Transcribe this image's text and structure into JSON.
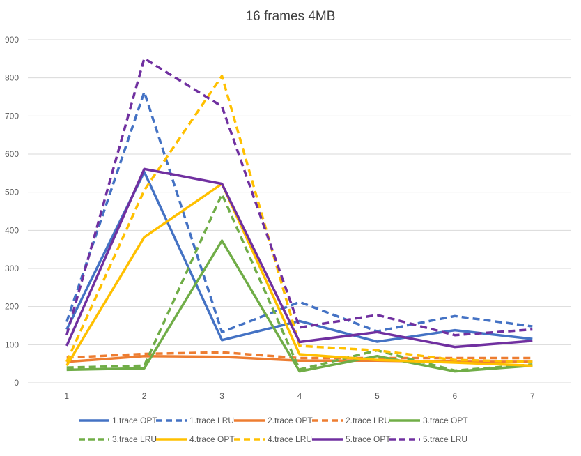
{
  "chart_data": {
    "type": "line",
    "title": "16 frames 4MB",
    "xlabel": "",
    "ylabel": "",
    "x": [
      "1",
      "2",
      "3",
      "4",
      "5",
      "6",
      "7"
    ],
    "ylim": [
      0,
      900
    ],
    "yticks": [
      0,
      100,
      200,
      300,
      400,
      500,
      600,
      700,
      800,
      900
    ],
    "grid": true,
    "legend_position": "bottom",
    "series": [
      {
        "name": "1.trace OPT",
        "color": "#4472C4",
        "dash": false,
        "values": [
          140,
          553,
          112,
          162,
          108,
          138,
          115
        ]
      },
      {
        "name": "1.trace LRU",
        "color": "#4472C4",
        "dash": true,
        "values": [
          160,
          763,
          133,
          212,
          135,
          175,
          148
        ]
      },
      {
        "name": "2.trace OPT",
        "color": "#ED7D31",
        "dash": false,
        "values": [
          55,
          70,
          68,
          58,
          58,
          55,
          55
        ]
      },
      {
        "name": "2.trace LRU",
        "color": "#ED7D31",
        "dash": true,
        "values": [
          66,
          76,
          80,
          65,
          65,
          65,
          65
        ]
      },
      {
        "name": "3.trace OPT",
        "color": "#70AD47",
        "dash": false,
        "values": [
          34,
          38,
          373,
          30,
          70,
          30,
          45
        ]
      },
      {
        "name": "3.trace LRU",
        "color": "#70AD47",
        "dash": true,
        "values": [
          40,
          45,
          495,
          35,
          85,
          32,
          48
        ]
      },
      {
        "name": "4.trace OPT",
        "color": "#FFC000",
        "dash": false,
        "values": [
          45,
          382,
          522,
          75,
          60,
          53,
          45
        ]
      },
      {
        "name": "4.trace LRU",
        "color": "#FFC000",
        "dash": true,
        "values": [
          55,
          505,
          805,
          97,
          85,
          60,
          55
        ]
      },
      {
        "name": "5.trace OPT",
        "color": "#7030A0",
        "dash": false,
        "values": [
          97,
          561,
          522,
          107,
          133,
          94,
          110
        ]
      },
      {
        "name": "5.trace LRU",
        "color": "#7030A0",
        "dash": true,
        "values": [
          125,
          851,
          725,
          145,
          178,
          125,
          140
        ]
      }
    ]
  }
}
